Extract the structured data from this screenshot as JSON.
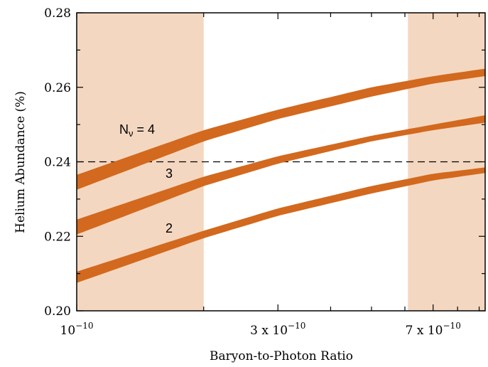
{
  "chart_data": {
    "type": "area",
    "xlabel": "Baryon-to-Photon Ratio",
    "ylabel": "Helium Abundance    (%)",
    "x_scale": "log",
    "xlim": [
      1e-10,
      9.3e-10
    ],
    "ylim": [
      0.2,
      0.28
    ],
    "x_ticks": [
      {
        "value": 1e-10,
        "mantissa": "",
        "base": "10",
        "exponent": "−10"
      },
      {
        "value": 3e-10,
        "mantissa": "3 x ",
        "base": "10",
        "exponent": "−10"
      },
      {
        "value": 7e-10,
        "mantissa": "7 x ",
        "base": "10",
        "exponent": "−10"
      }
    ],
    "y_ticks": [
      "0.20",
      "0.22",
      "0.24",
      "0.26",
      "0.28"
    ],
    "excluded_regions": [
      {
        "x_range": [
          1e-10,
          2e-10
        ],
        "color": "#f4d7c0"
      },
      {
        "x_range": [
          6.1e-10,
          9.3e-10
        ],
        "color": "#f4d7c0"
      }
    ],
    "reference_line": {
      "y": 0.24,
      "style": "dashed"
    },
    "series": [
      {
        "name": "Nν = 4",
        "label_main": "N",
        "label_sub": "ν",
        "label_rest": " = 4",
        "x": [
          1e-10,
          2e-10,
          3e-10,
          5e-10,
          7e-10,
          9.3e-10
        ],
        "low": [
          0.2325,
          0.2455,
          0.2515,
          0.2575,
          0.261,
          0.263
        ],
        "high": [
          0.2365,
          0.2485,
          0.254,
          0.26,
          0.263,
          0.265
        ]
      },
      {
        "name": "3",
        "label_main": "3",
        "x": [
          1e-10,
          2e-10,
          3e-10,
          5e-10,
          7e-10,
          9.3e-10
        ],
        "low": [
          0.2205,
          0.2335,
          0.2395,
          0.2455,
          0.2485,
          0.2505
        ],
        "high": [
          0.2245,
          0.236,
          0.2415,
          0.247,
          0.25,
          0.2525
        ]
      },
      {
        "name": "2",
        "label_main": "2",
        "x": [
          1e-10,
          2e-10,
          3e-10,
          5e-10,
          7e-10,
          9.3e-10
        ],
        "low": [
          0.2075,
          0.2195,
          0.2255,
          0.2315,
          0.235,
          0.237
        ],
        "high": [
          0.2105,
          0.2215,
          0.2275,
          0.2335,
          0.2368,
          0.2385
        ]
      }
    ],
    "band_color": "#d2691e",
    "region_color": "#f4d7c0"
  }
}
